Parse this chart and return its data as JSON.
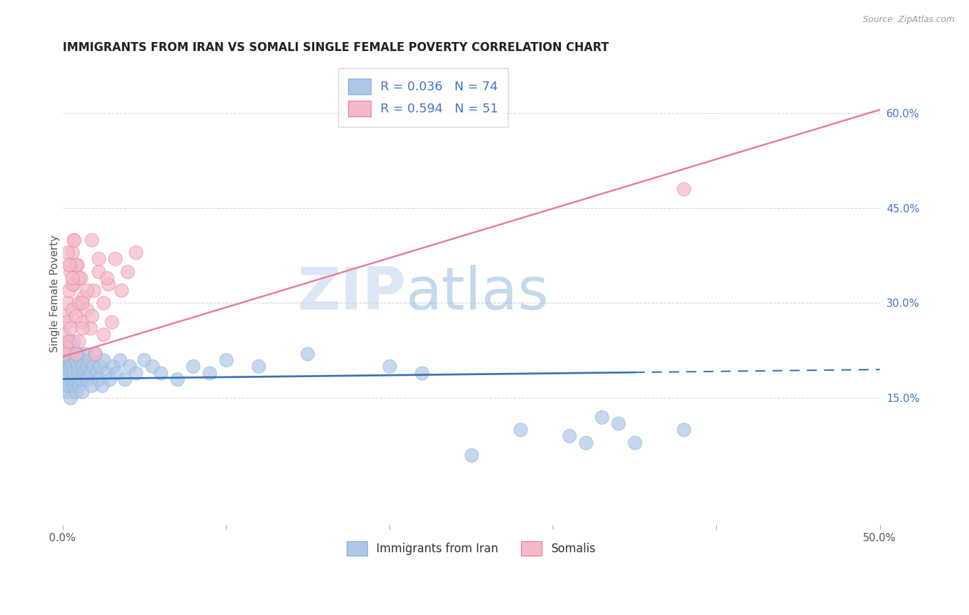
{
  "title": "IMMIGRANTS FROM IRAN VS SOMALI SINGLE FEMALE POVERTY CORRELATION CHART",
  "source": "Source: ZipAtlas.com",
  "ylabel": "Single Female Poverty",
  "xlim": [
    0.0,
    0.5
  ],
  "ylim": [
    -0.05,
    0.68
  ],
  "xtick_positions": [
    0.0,
    0.1,
    0.2,
    0.3,
    0.4,
    0.5
  ],
  "xtick_labels_show": [
    "0.0%",
    "",
    "",
    "",
    "",
    "50.0%"
  ],
  "yticks_right": [
    0.15,
    0.3,
    0.45,
    0.6
  ],
  "yticklabels_right": [
    "15.0%",
    "30.0%",
    "45.0%",
    "60.0%"
  ],
  "legend_entries": [
    {
      "label": "Immigrants from Iran",
      "color": "#aec6e8",
      "border": "#7fb3d8",
      "R": 0.036,
      "N": 74
    },
    {
      "label": "Somalis",
      "color": "#f4b8c8",
      "border": "#e87c9a",
      "R": 0.594,
      "N": 51
    }
  ],
  "blue_line_color": "#3a72b5",
  "pink_line_color": "#e87c9a",
  "text_color": "#4472c4",
  "watermark_zip": "ZIP",
  "watermark_atlas": "atlas",
  "watermark_zip_color": "#c5d8f0",
  "watermark_atlas_color": "#8ab4d8",
  "background": "#ffffff",
  "grid_color": "#d0d8e8",
  "iran_x": [
    0.001,
    0.001,
    0.002,
    0.002,
    0.002,
    0.003,
    0.003,
    0.003,
    0.003,
    0.004,
    0.004,
    0.004,
    0.005,
    0.005,
    0.005,
    0.006,
    0.006,
    0.006,
    0.007,
    0.007,
    0.007,
    0.007,
    0.008,
    0.008,
    0.008,
    0.009,
    0.009,
    0.01,
    0.01,
    0.011,
    0.011,
    0.012,
    0.012,
    0.013,
    0.014,
    0.015,
    0.015,
    0.016,
    0.017,
    0.018,
    0.019,
    0.02,
    0.021,
    0.022,
    0.023,
    0.024,
    0.025,
    0.027,
    0.029,
    0.031,
    0.033,
    0.035,
    0.038,
    0.041,
    0.045,
    0.05,
    0.055,
    0.06,
    0.07,
    0.08,
    0.09,
    0.1,
    0.12,
    0.15,
    0.2,
    0.22,
    0.25,
    0.28,
    0.31,
    0.32,
    0.33,
    0.34,
    0.35,
    0.38
  ],
  "iran_y": [
    0.2,
    0.22,
    0.19,
    0.23,
    0.17,
    0.21,
    0.18,
    0.24,
    0.16,
    0.2,
    0.22,
    0.17,
    0.19,
    0.21,
    0.15,
    0.23,
    0.18,
    0.2,
    0.22,
    0.17,
    0.19,
    0.24,
    0.18,
    0.21,
    0.16,
    0.2,
    0.22,
    0.19,
    0.17,
    0.21,
    0.18,
    0.2,
    0.16,
    0.19,
    0.22,
    0.2,
    0.18,
    0.21,
    0.19,
    0.17,
    0.2,
    0.22,
    0.19,
    0.18,
    0.2,
    0.17,
    0.21,
    0.19,
    0.18,
    0.2,
    0.19,
    0.21,
    0.18,
    0.2,
    0.19,
    0.21,
    0.2,
    0.19,
    0.18,
    0.2,
    0.19,
    0.21,
    0.2,
    0.22,
    0.2,
    0.19,
    0.06,
    0.1,
    0.09,
    0.08,
    0.12,
    0.11,
    0.08,
    0.1
  ],
  "somali_x": [
    0.001,
    0.001,
    0.002,
    0.002,
    0.003,
    0.003,
    0.004,
    0.004,
    0.005,
    0.005,
    0.006,
    0.006,
    0.007,
    0.007,
    0.008,
    0.009,
    0.01,
    0.011,
    0.012,
    0.013,
    0.015,
    0.017,
    0.019,
    0.022,
    0.025,
    0.028,
    0.032,
    0.036,
    0.04,
    0.045,
    0.005,
    0.006,
    0.007,
    0.008,
    0.01,
    0.012,
    0.015,
    0.018,
    0.003,
    0.004,
    0.006,
    0.008,
    0.01,
    0.012,
    0.02,
    0.025,
    0.03,
    0.018,
    0.022,
    0.027,
    0.38
  ],
  "somali_y": [
    0.25,
    0.22,
    0.28,
    0.23,
    0.27,
    0.3,
    0.24,
    0.32,
    0.26,
    0.35,
    0.29,
    0.38,
    0.33,
    0.4,
    0.28,
    0.36,
    0.3,
    0.34,
    0.27,
    0.31,
    0.29,
    0.26,
    0.32,
    0.35,
    0.3,
    0.33,
    0.37,
    0.32,
    0.35,
    0.38,
    0.36,
    0.33,
    0.4,
    0.36,
    0.34,
    0.3,
    0.32,
    0.28,
    0.38,
    0.36,
    0.34,
    0.22,
    0.24,
    0.26,
    0.22,
    0.25,
    0.27,
    0.4,
    0.37,
    0.34,
    0.48
  ]
}
